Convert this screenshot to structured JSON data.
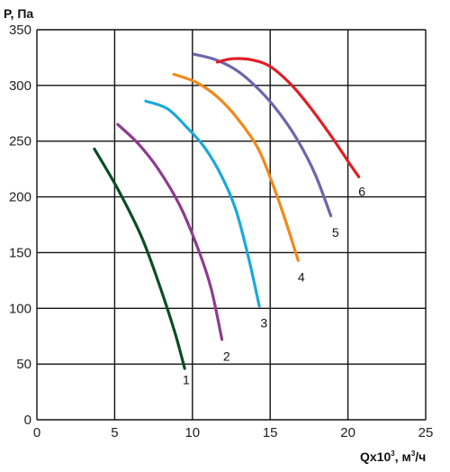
{
  "chart_data": {
    "type": "line",
    "ylabel": "P, Па",
    "xlabel": {
      "base": "Qx10",
      "exp": "3",
      "sep": ", м",
      "unit_exp": "3",
      "unit_tail": "/ч"
    },
    "xlim": [
      0,
      25
    ],
    "ylim": [
      0,
      350
    ],
    "xticks": [
      0,
      5,
      10,
      15,
      20,
      25
    ],
    "yticks": [
      0,
      50,
      100,
      150,
      200,
      250,
      300,
      350
    ],
    "grid": true,
    "series": [
      {
        "name": "1",
        "color": "#0b4d24",
        "points": [
          [
            3.7,
            243
          ],
          [
            5.2,
            207
          ],
          [
            6.7,
            165
          ],
          [
            7.9,
            120
          ],
          [
            8.9,
            77
          ],
          [
            9.5,
            46
          ]
        ]
      },
      {
        "name": "2",
        "color": "#8e3b8e",
        "points": [
          [
            5.2,
            265
          ],
          [
            6.5,
            248
          ],
          [
            7.8,
            225
          ],
          [
            9.2,
            192
          ],
          [
            10.4,
            152
          ],
          [
            11.2,
            118
          ],
          [
            11.9,
            72
          ]
        ]
      },
      {
        "name": "3",
        "color": "#1aa8dc",
        "points": [
          [
            7.0,
            286
          ],
          [
            8.4,
            279
          ],
          [
            9.6,
            263
          ],
          [
            10.8,
            244
          ],
          [
            11.9,
            218
          ],
          [
            12.8,
            188
          ],
          [
            13.6,
            146
          ],
          [
            14.3,
            102
          ]
        ]
      },
      {
        "name": "4",
        "color": "#f0891a",
        "points": [
          [
            8.8,
            310
          ],
          [
            10.2,
            303
          ],
          [
            11.5,
            291
          ],
          [
            12.8,
            272
          ],
          [
            14.2,
            244
          ],
          [
            15.2,
            210
          ],
          [
            16.0,
            178
          ],
          [
            16.8,
            143
          ]
        ]
      },
      {
        "name": "5",
        "color": "#6a67ab",
        "points": [
          [
            10.1,
            328
          ],
          [
            11.5,
            323
          ],
          [
            12.9,
            313
          ],
          [
            14.3,
            296
          ],
          [
            15.6,
            275
          ],
          [
            16.8,
            250
          ],
          [
            17.9,
            220
          ],
          [
            18.9,
            183
          ]
        ]
      },
      {
        "name": "6",
        "color": "#e01e26",
        "points": [
          [
            11.6,
            321
          ],
          [
            12.6,
            324
          ],
          [
            13.8,
            323
          ],
          [
            15.0,
            317
          ],
          [
            16.4,
            300
          ],
          [
            17.7,
            278
          ],
          [
            19.0,
            253
          ],
          [
            20.1,
            230
          ],
          [
            20.7,
            218
          ]
        ]
      }
    ],
    "labels": [
      {
        "text": "1",
        "x": 9.6,
        "y": 36
      },
      {
        "text": "2",
        "x": 12.2,
        "y": 57
      },
      {
        "text": "3",
        "x": 14.6,
        "y": 87
      },
      {
        "text": "4",
        "x": 17.0,
        "y": 128
      },
      {
        "text": "5",
        "x": 19.2,
        "y": 168
      },
      {
        "text": "6",
        "x": 20.9,
        "y": 205
      }
    ]
  }
}
